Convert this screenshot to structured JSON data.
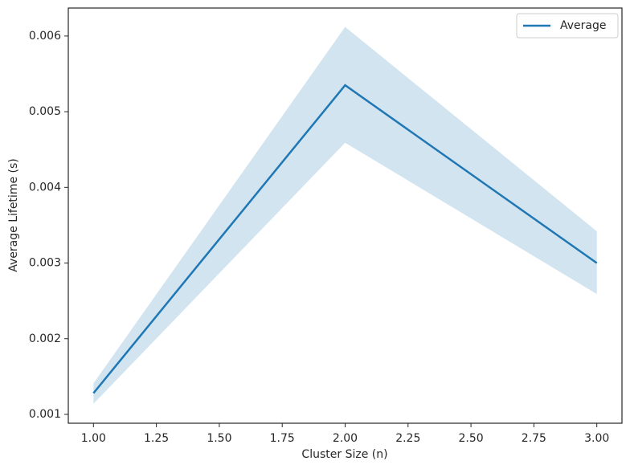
{
  "chart_data": {
    "type": "line",
    "x_label": "Cluster Size (n)",
    "y_label": "Average Lifetime (s)",
    "x": [
      1,
      2,
      3
    ],
    "series": [
      {
        "name": "Average",
        "color": "#1f77b4",
        "values": [
          0.00128,
          0.00535,
          0.003
        ],
        "lower": [
          0.00114,
          0.00459,
          0.00259
        ],
        "upper": [
          0.00141,
          0.00612,
          0.00342
        ]
      }
    ],
    "band_opacity": 0.2,
    "xlim": [
      0.9,
      3.1
    ],
    "xticks": [
      {
        "value": 1,
        "label": "1.00"
      },
      {
        "value": 1.25,
        "label": "1.25"
      },
      {
        "value": 1.5,
        "label": "1.50"
      },
      {
        "value": 1.75,
        "label": "1.75"
      },
      {
        "value": 2,
        "label": "2.00"
      },
      {
        "value": 2.25,
        "label": "2.25"
      },
      {
        "value": 2.5,
        "label": "2.50"
      },
      {
        "value": 2.75,
        "label": "2.75"
      },
      {
        "value": 3,
        "label": "3.00"
      }
    ],
    "ylim": [
      0.000883,
      0.00637
    ],
    "yticks": [
      0.001,
      0.002,
      0.003,
      0.004,
      0.005,
      0.006
    ],
    "legend": "upper right"
  }
}
